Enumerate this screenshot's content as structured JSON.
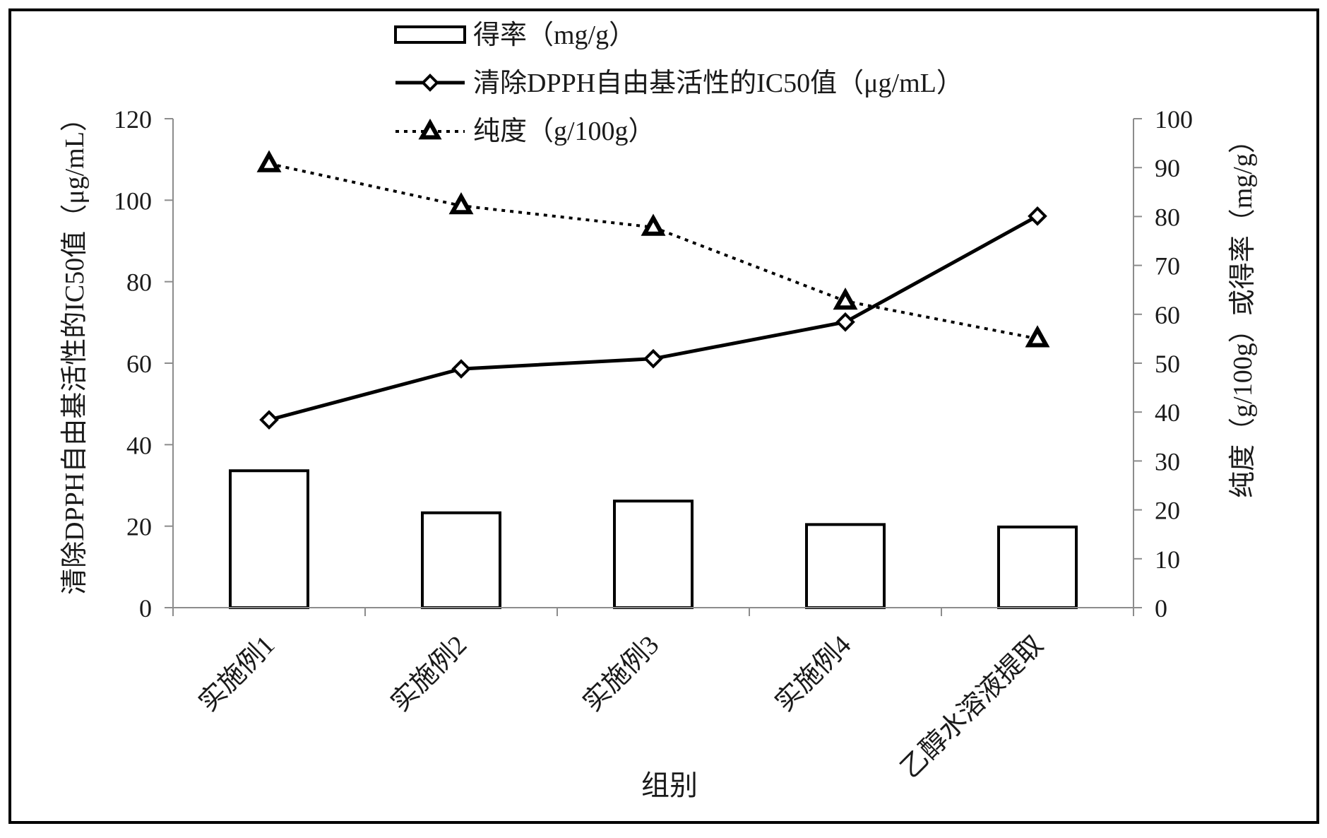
{
  "chart_data": {
    "type": "bar",
    "categories": [
      "实施例1",
      "实施例2",
      "实施例3",
      "实施例4",
      "乙醇水溶液提取"
    ],
    "xlabel": "组别",
    "ylabel_left": "清除DPPH自由基活性的IC50值（μg/mL）",
    "ylabel_right": "纯度（g/100g）或得率（mg/g）",
    "ylim_left": [
      0,
      120
    ],
    "yticks_left": [
      "0",
      "20",
      "40",
      "60",
      "80",
      "100",
      "120"
    ],
    "ylim_right": [
      0,
      100
    ],
    "yticks_right": [
      "0",
      "10",
      "20",
      "30",
      "40",
      "50",
      "60",
      "70",
      "80",
      "90",
      "100"
    ],
    "grid": false,
    "legend_position": "top",
    "series": [
      {
        "name": "得率（mg/g）",
        "type": "bar",
        "axis": "right",
        "values": [
          28.0,
          19.4,
          21.8,
          17.0,
          16.5
        ],
        "color": "#000000"
      },
      {
        "name": "清除DPPH自由基活性的IC50值（μg/mL）",
        "type": "line",
        "axis": "left",
        "marker": "diamond",
        "line_style": "solid",
        "values": [
          46.1,
          58.6,
          61.1,
          70.1,
          96.1
        ],
        "color": "#000000"
      },
      {
        "name": "纯度（g/100g）",
        "type": "line",
        "axis": "right",
        "marker": "triangle",
        "line_style": "dotted",
        "values": [
          90.8,
          82.2,
          77.8,
          62.7,
          55.0
        ],
        "color": "#000000"
      }
    ]
  }
}
